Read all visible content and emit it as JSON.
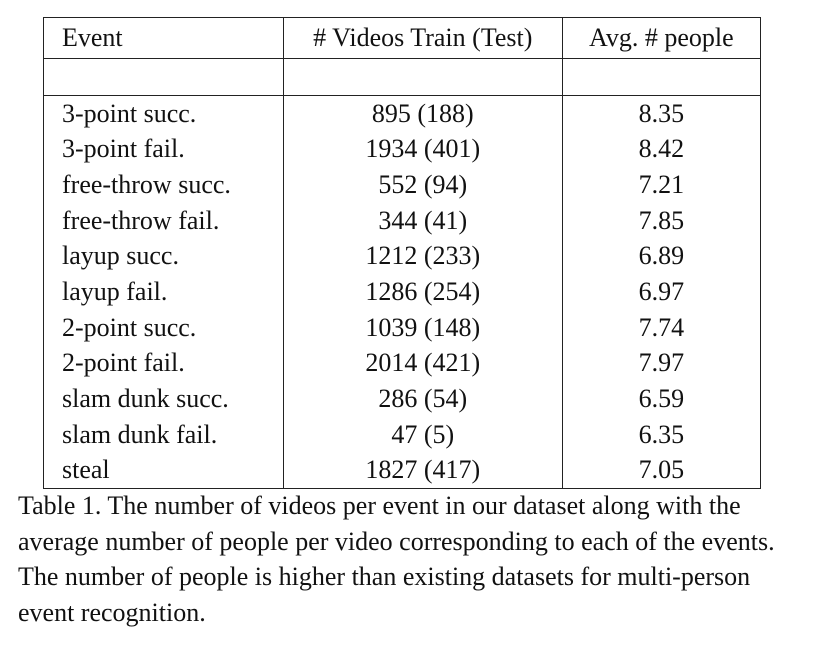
{
  "table": {
    "headers": {
      "event": "Event",
      "videos": "# Videos Train (Test)",
      "people": "Avg. # people"
    },
    "rows": [
      {
        "event": "3-point succ.",
        "videos": "895 (188)",
        "people": "8.35"
      },
      {
        "event": "3-point fail.",
        "videos": "1934 (401)",
        "people": "8.42"
      },
      {
        "event": "free-throw succ.",
        "videos": "552 (94)",
        "people": "7.21"
      },
      {
        "event": "free-throw fail.",
        "videos": "344 (41)",
        "people": "7.85"
      },
      {
        "event": "layup succ.",
        "videos": "1212 (233)",
        "people": "6.89"
      },
      {
        "event": "layup fail.",
        "videos": "1286 (254)",
        "people": "6.97"
      },
      {
        "event": "2-point succ.",
        "videos": "1039 (148)",
        "people": "7.74"
      },
      {
        "event": "2-point fail.",
        "videos": "2014 (421)",
        "people": "7.97"
      },
      {
        "event": "slam dunk succ.",
        "videos": "286 (54)",
        "people": "6.59"
      },
      {
        "event": "slam dunk fail.",
        "videos": "47 (5)",
        "people": "6.35"
      },
      {
        "event": "steal",
        "videos": "1827 (417)",
        "people": "7.05"
      }
    ]
  },
  "caption": "Table 1. The number of videos per event in our dataset along with the average number of people per video corresponding to each of the events. The number of people is higher than existing datasets for multi-person event recognition."
}
